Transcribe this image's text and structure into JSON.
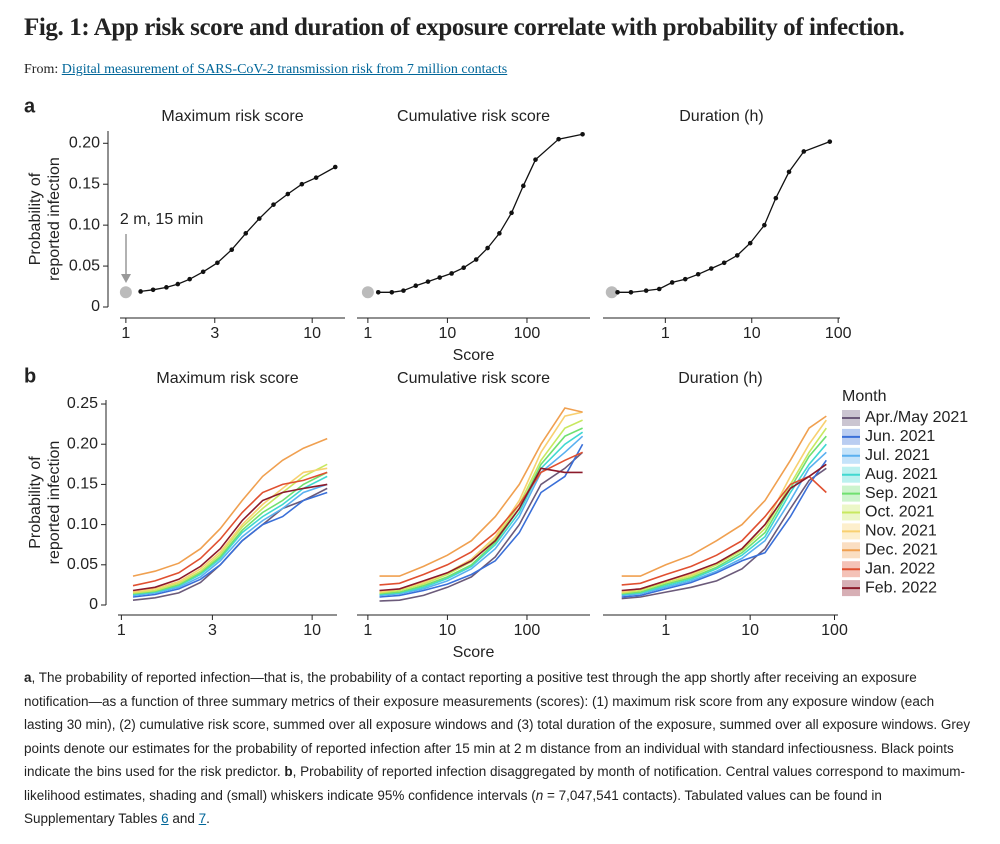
{
  "header": {
    "title": "Fig. 1: App risk score and duration of exposure correlate with probability of infection.",
    "from_prefix": "From:",
    "from_link": "Digital measurement of SARS-CoV-2 transmission risk from 7 million contacts"
  },
  "figure": {
    "panel_labels": [
      "a",
      "b"
    ]
  },
  "chart_data": [
    {
      "type": "line",
      "title": "Maximum risk score",
      "log_x": true,
      "xlim": [
        0.93,
        15
      ],
      "xticks": [
        1,
        3,
        10
      ],
      "ylim": [
        0,
        0.215
      ],
      "yticks": [
        0,
        0.05,
        {
          "value": 0.1,
          "label": "0.10"
        },
        0.15,
        {
          "value": 0.2,
          "label": "0.20"
        }
      ],
      "ylabel": [
        "Probability of",
        "reported infection"
      ],
      "color": "#111111",
      "x": [
        1.2,
        1.4,
        1.65,
        1.9,
        2.2,
        2.6,
        3.1,
        3.7,
        4.4,
        5.2,
        6.2,
        7.4,
        8.8,
        10.5,
        13.3
      ],
      "values": [
        0.019,
        0.021,
        0.024,
        0.028,
        0.034,
        0.043,
        0.054,
        0.07,
        0.09,
        0.108,
        0.125,
        0.138,
        0.15,
        0.158,
        0.171
      ],
      "reference_point": {
        "x": 1,
        "y": 0.018,
        "color": "#bbbbbb"
      },
      "annotation": "2 m, 15 min"
    },
    {
      "type": "line",
      "title": "Cumulative risk score",
      "log_x": true,
      "xlim": [
        0.73,
        620
      ],
      "xticks": [
        1,
        10,
        100
      ],
      "ylim": [
        0,
        0.215
      ],
      "xlabel": "Score",
      "color": "#111111",
      "x": [
        1.35,
        2,
        2.8,
        4,
        5.7,
        8,
        11.3,
        16,
        23,
        32,
        45,
        64,
        90,
        128,
        250,
        500
      ],
      "values": [
        0.018,
        0.018,
        0.02,
        0.026,
        0.031,
        0.036,
        0.041,
        0.048,
        0.058,
        0.072,
        0.09,
        0.115,
        0.148,
        0.18,
        0.205,
        0.211
      ],
      "reference_point": {
        "x": 1,
        "y": 0.018,
        "color": "#bbbbbb"
      }
    },
    {
      "type": "line",
      "title": "Duration (h)",
      "log_x": true,
      "xlim": [
        0.19,
        105
      ],
      "xticks": [
        1,
        10,
        100
      ],
      "ylim": [
        0,
        0.215
      ],
      "color": "#111111",
      "x": [
        0.28,
        0.4,
        0.6,
        0.85,
        1.2,
        1.7,
        2.4,
        3.4,
        4.8,
        6.8,
        9.6,
        14,
        19,
        27,
        40,
        80
      ],
      "values": [
        0.018,
        0.018,
        0.02,
        0.022,
        0.03,
        0.034,
        0.04,
        0.047,
        0.054,
        0.063,
        0.078,
        0.1,
        0.133,
        0.165,
        0.19,
        0.202
      ],
      "reference_point": {
        "x": 0.24,
        "y": 0.018,
        "color": "#bbbbbb"
      }
    },
    {
      "type": "multiline",
      "title": "Maximum risk score",
      "log_x": true,
      "xlim": [
        0.96,
        13.5
      ],
      "xticks": [
        1,
        3,
        10
      ],
      "ylim": [
        0,
        0.255
      ],
      "yticks": [
        0,
        0.05,
        {
          "value": 0.1,
          "label": "0.10"
        },
        0.15,
        {
          "value": 0.2,
          "label": "0.20"
        },
        0.25
      ],
      "ylabel": [
        "Probability of",
        "reported infection"
      ],
      "x": [
        1.15,
        1.5,
        2,
        2.6,
        3.3,
        4.3,
        5.5,
        7,
        9,
        12
      ],
      "series": [
        {
          "values": [
            0.006,
            0.009,
            0.015,
            0.028,
            0.05,
            0.08,
            0.1,
            0.12,
            0.13,
            0.145
          ]
        },
        {
          "values": [
            0.01,
            0.013,
            0.02,
            0.032,
            0.05,
            0.08,
            0.1,
            0.11,
            0.13,
            0.14
          ]
        },
        {
          "values": [
            0.012,
            0.015,
            0.022,
            0.035,
            0.055,
            0.085,
            0.105,
            0.12,
            0.14,
            0.15
          ]
        },
        {
          "values": [
            0.013,
            0.016,
            0.024,
            0.038,
            0.058,
            0.09,
            0.11,
            0.125,
            0.145,
            0.16
          ]
        },
        {
          "values": [
            0.014,
            0.017,
            0.025,
            0.04,
            0.06,
            0.093,
            0.115,
            0.13,
            0.15,
            0.165
          ]
        },
        {
          "values": [
            0.015,
            0.018,
            0.027,
            0.042,
            0.063,
            0.097,
            0.12,
            0.14,
            0.16,
            0.175
          ]
        },
        {
          "values": [
            0.016,
            0.02,
            0.029,
            0.045,
            0.066,
            0.1,
            0.125,
            0.145,
            0.165,
            0.17
          ]
        },
        {
          "values": [
            0.036,
            0.042,
            0.052,
            0.07,
            0.095,
            0.13,
            0.16,
            0.18,
            0.195,
            0.207
          ]
        },
        {
          "values": [
            0.024,
            0.03,
            0.04,
            0.058,
            0.082,
            0.115,
            0.14,
            0.15,
            0.155,
            0.165
          ]
        },
        {
          "values": [
            0.018,
            0.022,
            0.032,
            0.048,
            0.07,
            0.105,
            0.13,
            0.14,
            0.145,
            0.15
          ]
        }
      ]
    },
    {
      "type": "multiline",
      "title": "Cumulative risk score",
      "log_x": true,
      "xlim": [
        0.73,
        620
      ],
      "xticks": [
        1,
        10,
        100
      ],
      "ylim": [
        0,
        0.255
      ],
      "xlabel": "Score",
      "x": [
        1.4,
        2.5,
        5,
        10,
        20,
        40,
        80,
        150,
        300,
        500
      ],
      "series": [
        {
          "values": [
            0.005,
            0.006,
            0.012,
            0.022,
            0.035,
            0.06,
            0.1,
            0.15,
            0.17,
            0.19
          ]
        },
        {
          "values": [
            0.01,
            0.012,
            0.018,
            0.026,
            0.038,
            0.055,
            0.09,
            0.14,
            0.16,
            0.2
          ]
        },
        {
          "values": [
            0.012,
            0.014,
            0.02,
            0.03,
            0.045,
            0.07,
            0.11,
            0.165,
            0.19,
            0.21
          ]
        },
        {
          "values": [
            0.013,
            0.015,
            0.022,
            0.033,
            0.048,
            0.075,
            0.115,
            0.17,
            0.2,
            0.215
          ]
        },
        {
          "values": [
            0.014,
            0.016,
            0.024,
            0.035,
            0.05,
            0.078,
            0.12,
            0.175,
            0.21,
            0.22
          ]
        },
        {
          "values": [
            0.015,
            0.018,
            0.026,
            0.038,
            0.054,
            0.082,
            0.125,
            0.18,
            0.22,
            0.23
          ]
        },
        {
          "values": [
            0.016,
            0.02,
            0.028,
            0.04,
            0.057,
            0.085,
            0.13,
            0.19,
            0.235,
            0.24
          ]
        },
        {
          "values": [
            0.036,
            0.036,
            0.048,
            0.062,
            0.08,
            0.11,
            0.15,
            0.2,
            0.245,
            0.24
          ]
        },
        {
          "values": [
            0.025,
            0.027,
            0.038,
            0.05,
            0.066,
            0.09,
            0.125,
            0.165,
            0.18,
            0.19
          ]
        },
        {
          "values": [
            0.018,
            0.02,
            0.03,
            0.04,
            0.055,
            0.08,
            0.12,
            0.17,
            0.165,
            0.165
          ]
        }
      ]
    },
    {
      "type": "multiline",
      "title": "Duration (h)",
      "log_x": true,
      "xlim": [
        0.18,
        110
      ],
      "xticks": [
        1,
        10,
        100
      ],
      "ylim": [
        0,
        0.255
      ],
      "legend_title": "Month",
      "x": [
        0.3,
        0.5,
        1,
        2,
        4,
        8,
        15,
        30,
        50,
        80
      ],
      "series": [
        {
          "name": "Apr./May 2021",
          "color": "#6b5a7a",
          "values": [
            0.008,
            0.01,
            0.016,
            0.022,
            0.03,
            0.045,
            0.07,
            0.12,
            0.155,
            0.17
          ]
        },
        {
          "name": "Jun. 2021",
          "color": "#3a6fd8",
          "values": [
            0.01,
            0.012,
            0.02,
            0.028,
            0.04,
            0.055,
            0.065,
            0.11,
            0.15,
            0.18
          ]
        },
        {
          "name": "Jul. 2021",
          "color": "#5ab0f0",
          "values": [
            0.012,
            0.014,
            0.022,
            0.03,
            0.042,
            0.058,
            0.08,
            0.13,
            0.17,
            0.19
          ]
        },
        {
          "name": "Aug. 2021",
          "color": "#40d8d0",
          "values": [
            0.013,
            0.015,
            0.024,
            0.032,
            0.045,
            0.062,
            0.085,
            0.14,
            0.175,
            0.2
          ]
        },
        {
          "name": "Sep. 2021",
          "color": "#70e070",
          "values": [
            0.014,
            0.016,
            0.026,
            0.034,
            0.047,
            0.065,
            0.09,
            0.145,
            0.185,
            0.21
          ]
        },
        {
          "name": "Oct. 2021",
          "color": "#c8e860",
          "values": [
            0.015,
            0.018,
            0.028,
            0.036,
            0.05,
            0.068,
            0.095,
            0.15,
            0.19,
            0.22
          ]
        },
        {
          "name": "Nov. 2021",
          "color": "#f8d070",
          "values": [
            0.016,
            0.02,
            0.03,
            0.038,
            0.052,
            0.07,
            0.1,
            0.16,
            0.2,
            0.23
          ]
        },
        {
          "name": "Dec. 2021",
          "color": "#f0a050",
          "values": [
            0.036,
            0.036,
            0.05,
            0.062,
            0.08,
            0.1,
            0.13,
            0.18,
            0.22,
            0.235
          ]
        },
        {
          "name": "Jan. 2022",
          "color": "#e05030",
          "values": [
            0.025,
            0.027,
            0.038,
            0.048,
            0.062,
            0.08,
            0.11,
            0.15,
            0.16,
            0.14
          ]
        },
        {
          "name": "Feb. 2022",
          "color": "#8b1a2a",
          "values": [
            0.018,
            0.02,
            0.03,
            0.04,
            0.052,
            0.07,
            0.1,
            0.145,
            0.16,
            0.175
          ]
        }
      ]
    }
  ],
  "caption": [
    "a",
    ", The probability of reported infection—that is, the probability of a contact reporting a positive test through the app shortly after receiving an exposure notification—as a function of three summary metrics of their exposure measurements (scores): (1) maximum risk score from any exposure window (each lasting 30 min), (2) cumulative risk score, summed over all exposure windows and (3) total duration of the exposure, summed over all exposure windows. Grey points denote our estimates for the probability of reported infection after 15 min at 2 m distance from an individual with standard infectiousness. Black points indicate the bins used for the risk predictor. ",
    "b",
    ", Probability of reported infection disaggregated by month of notification. Central values correspond to maximum-likelihood estimates, shading and (small) whiskers indicate 95% confidence intervals (",
    "n",
    " = 7,047,541 contacts). Tabulated values can be found in Supplementary Tables ",
    "6",
    " and ",
    "7",
    "."
  ]
}
